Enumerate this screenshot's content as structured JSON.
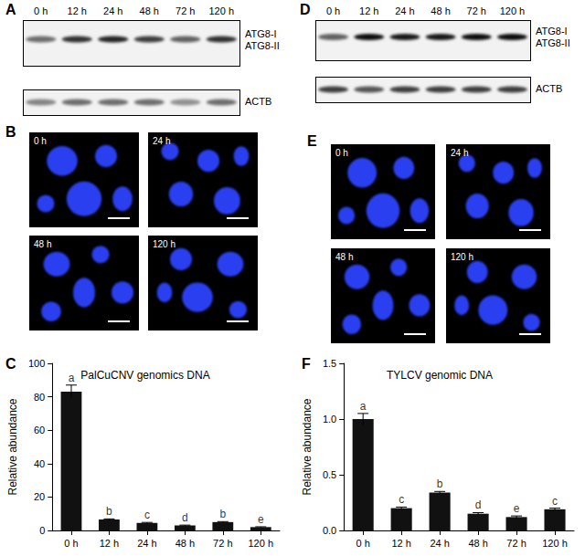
{
  "panels": {
    "A": {
      "letter": "A",
      "lanes": [
        "0 h",
        "12 h",
        "24 h",
        "48 h",
        "72 h",
        "120 h"
      ],
      "bands": [
        "ATG8-I",
        "ATG8-II"
      ],
      "control": "ACTB"
    },
    "B": {
      "letter": "B",
      "images": [
        "0 h",
        "24 h",
        "48 h",
        "120 h"
      ]
    },
    "C": {
      "letter": "C"
    },
    "D": {
      "letter": "D",
      "lanes": [
        "0 h",
        "12 h",
        "24 h",
        "48 h",
        "72 h",
        "120 h"
      ],
      "bands": [
        "ATG8-I",
        "ATG8-II"
      ],
      "control": "ACTB"
    },
    "E": {
      "letter": "E",
      "images": [
        "0 h",
        "24 h",
        "48 h",
        "120 h"
      ]
    },
    "F": {
      "letter": "F"
    }
  },
  "chart_data": [
    {
      "type": "bar",
      "title": "PalCuCNV genomics DNA",
      "y_label": "Relative abundance",
      "categories": [
        "0 h",
        "12 h",
        "24 h",
        "48 h",
        "72 h",
        "120 h"
      ],
      "values": [
        83,
        6.5,
        4.5,
        3,
        5,
        2
      ],
      "errors": [
        4,
        0.4,
        0.3,
        0.2,
        0.3,
        0.2
      ],
      "annotations": [
        "a",
        "b",
        "c",
        "d",
        "b",
        "e"
      ],
      "color": "#111111",
      "ylim": [
        0,
        100
      ],
      "yticks": [
        0,
        20,
        40,
        60,
        80,
        100
      ],
      "grid": false
    },
    {
      "type": "bar",
      "title": "TYLCV genomic DNA",
      "y_label": "Relative abundance",
      "categories": [
        "0 h",
        "12 h",
        "24 h",
        "48 h",
        "72 h",
        "120 h"
      ],
      "values": [
        1.0,
        0.2,
        0.34,
        0.15,
        0.12,
        0.19
      ],
      "errors": [
        0.05,
        0.01,
        0.01,
        0.01,
        0.01,
        0.01
      ],
      "annotations": [
        "a",
        "c",
        "b",
        "d",
        "e",
        "c"
      ],
      "color": "#111111",
      "ylim": [
        0,
        1.5
      ],
      "yticks": [
        {
          "value": 0,
          "label": "0.0"
        },
        0.5,
        {
          "value": 1,
          "label": "1.0"
        },
        1.5
      ],
      "grid": false
    }
  ]
}
